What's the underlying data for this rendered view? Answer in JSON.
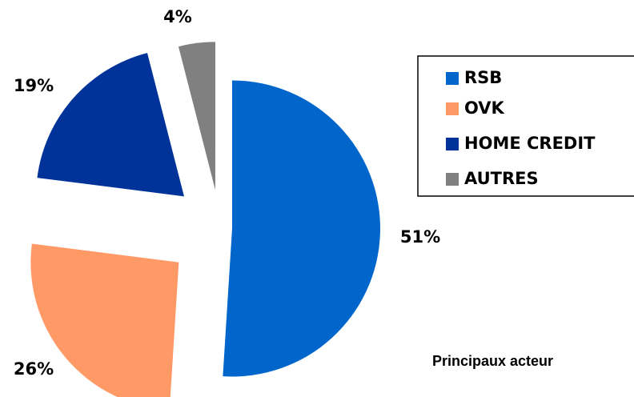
{
  "chart_data": {
    "type": "pie",
    "categories": [
      "RSB",
      "OVK",
      "HOME CREDIT",
      "AUTRES"
    ],
    "values": [
      51,
      26,
      19,
      4
    ],
    "value_labels": [
      "51%",
      "26%",
      "19%",
      "4%"
    ],
    "colors": [
      "#0066cc",
      "#ff9966",
      "#003399",
      "#808080"
    ],
    "legend": "top-right",
    "annotation": "Principaux acteur"
  }
}
